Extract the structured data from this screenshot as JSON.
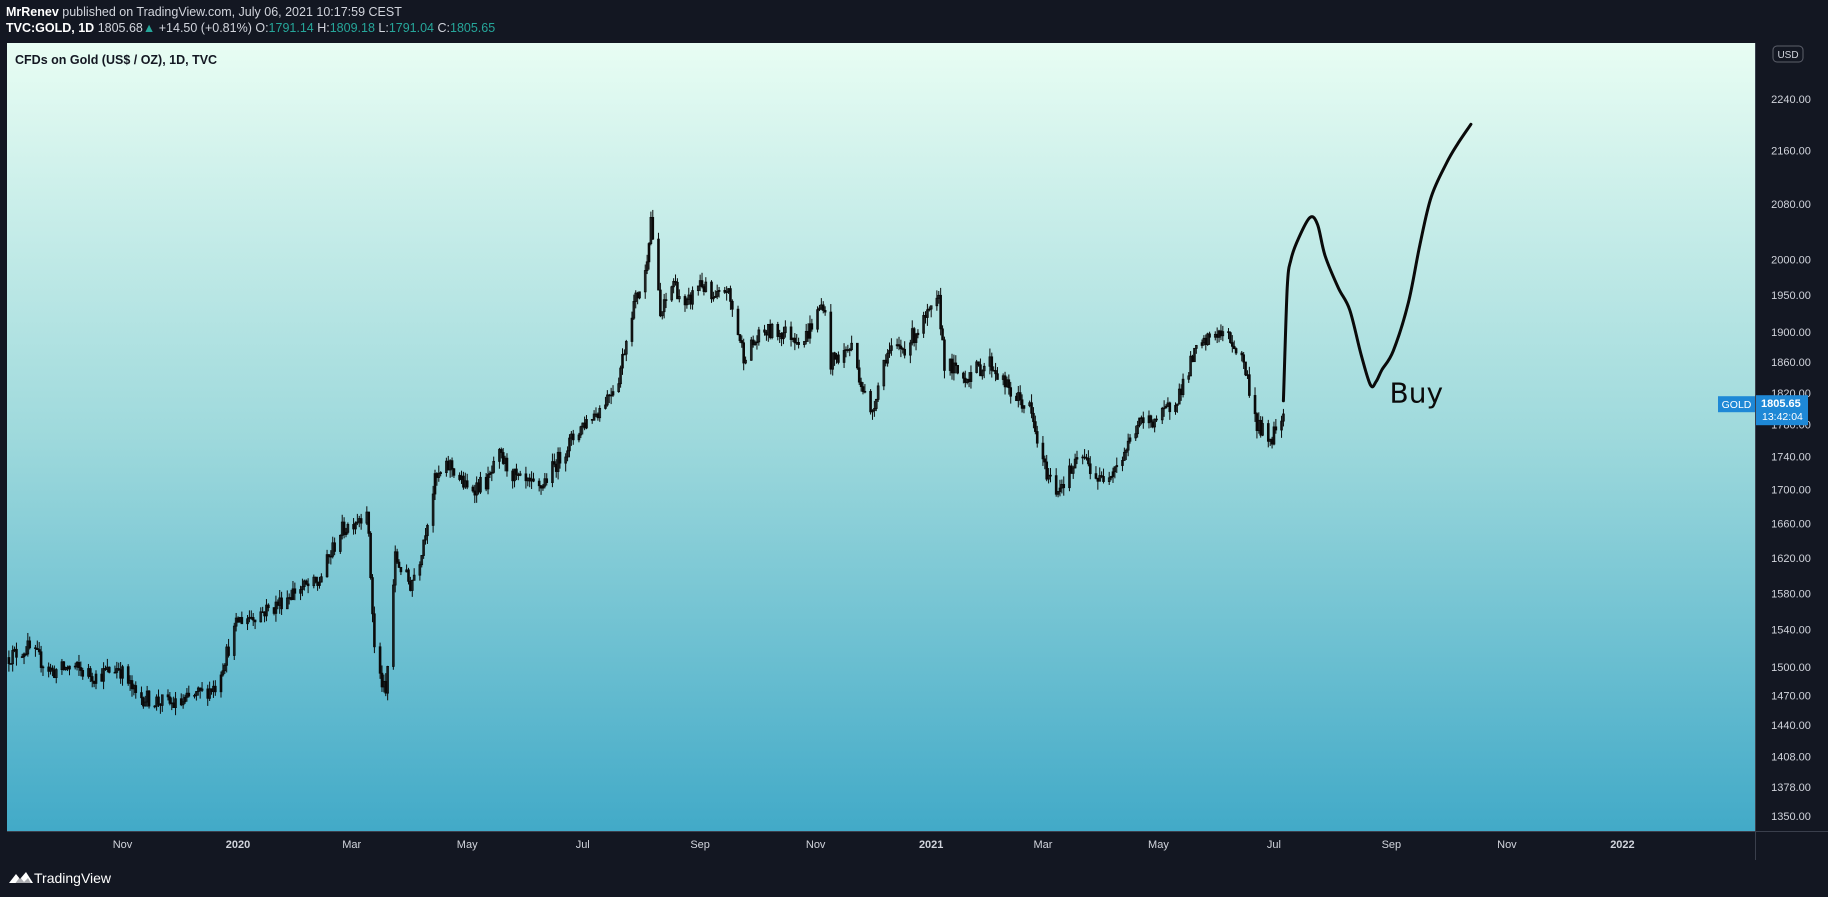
{
  "header": {
    "author": "MrRenev",
    "published_text": "published on TradingView.com, July 06, 2021 10:17:59 CEST",
    "symbol": "TVC:GOLD, 1D",
    "last": "1805.68",
    "change": "+14.50 (+0.81%)",
    "o_label": "O:",
    "o_value": "1791.14",
    "h_label": "H:",
    "h_value": "1809.18",
    "l_label": "L:",
    "l_value": "1791.04",
    "c_label": "C:",
    "c_value": "1805.65"
  },
  "footer": {
    "brand": "TradingView"
  },
  "colors": {
    "background": "#131722",
    "gradient_top": "#e8fdf3",
    "gradient_bottom": "#42aac8",
    "candle": "#0a0a0a",
    "accent": "#1e88d6",
    "up": "#26a69a"
  },
  "chart_data": {
    "type": "candlestick",
    "title": "CFDs on Gold (US$ / OZ), 1D, TVC",
    "currency": "USD",
    "y_scale": "log",
    "ylim": [
      1336,
      2330
    ],
    "xlim": [
      "2019-09-01",
      "2022-03-12"
    ],
    "y_ticks": [
      2240,
      2160,
      2080,
      2000,
      1950,
      1900,
      1860,
      1820,
      1780,
      1740,
      1700,
      1660,
      1620,
      1580,
      1540,
      1500,
      1470,
      1440,
      1408,
      1378,
      1350
    ],
    "y_tick_labels": [
      "2240.00",
      "2160.00",
      "2080.00",
      "2000.00",
      "1950.00",
      "1900.00",
      "1860.00",
      "1820.00",
      "1780.00",
      "1740.00",
      "1700.00",
      "1660.00",
      "1620.00",
      "1580.00",
      "1540.00",
      "1500.00",
      "1470.00",
      "1440.00",
      "1408.00",
      "1378.00",
      "1350.00"
    ],
    "x_ticks": [
      {
        "date": "2019-11-01",
        "label": "Nov",
        "bold": false
      },
      {
        "date": "2020-01-01",
        "label": "2020",
        "bold": true
      },
      {
        "date": "2020-03-01",
        "label": "Mar",
        "bold": false
      },
      {
        "date": "2020-05-01",
        "label": "May",
        "bold": false
      },
      {
        "date": "2020-07-01",
        "label": "Jul",
        "bold": false
      },
      {
        "date": "2020-09-01",
        "label": "Sep",
        "bold": false
      },
      {
        "date": "2020-11-01",
        "label": "Nov",
        "bold": false
      },
      {
        "date": "2021-01-01",
        "label": "2021",
        "bold": true
      },
      {
        "date": "2021-03-01",
        "label": "Mar",
        "bold": false
      },
      {
        "date": "2021-05-01",
        "label": "May",
        "bold": false
      },
      {
        "date": "2021-07-01",
        "label": "Jul",
        "bold": false
      },
      {
        "date": "2021-09-01",
        "label": "Sep",
        "bold": false
      },
      {
        "date": "2021-11-01",
        "label": "Nov",
        "bold": false
      },
      {
        "date": "2022-01-01",
        "label": "2022",
        "bold": true
      }
    ],
    "price_series": {
      "dates": [
        "2019-09-01",
        "2019-09-12",
        "2019-09-25",
        "2019-10-05",
        "2019-10-18",
        "2019-10-30",
        "2019-11-08",
        "2019-11-18",
        "2019-11-30",
        "2019-12-10",
        "2019-12-20",
        "2020-01-01",
        "2020-01-08",
        "2020-01-20",
        "2020-02-01",
        "2020-02-12",
        "2020-02-24",
        "2020-03-06",
        "2020-03-09",
        "2020-03-13",
        "2020-03-16",
        "2020-03-19",
        "2020-03-24",
        "2020-04-01",
        "2020-04-06",
        "2020-04-14",
        "2020-04-22",
        "2020-05-01",
        "2020-05-12",
        "2020-05-18",
        "2020-05-28",
        "2020-06-08",
        "2020-06-22",
        "2020-07-01",
        "2020-07-10",
        "2020-07-20",
        "2020-07-27",
        "2020-08-03",
        "2020-08-06",
        "2020-08-11",
        "2020-08-18",
        "2020-08-24",
        "2020-09-01",
        "2020-09-08",
        "2020-09-15",
        "2020-09-24",
        "2020-10-05",
        "2020-10-15",
        "2020-10-26",
        "2020-11-05",
        "2020-11-09",
        "2020-11-20",
        "2020-11-30",
        "2020-12-08",
        "2020-12-18",
        "2021-01-05",
        "2021-01-08",
        "2021-01-18",
        "2021-02-01",
        "2021-02-12",
        "2021-02-22",
        "2021-03-01",
        "2021-03-08",
        "2021-03-15",
        "2021-03-22",
        "2021-03-31",
        "2021-04-12",
        "2021-04-20",
        "2021-05-03",
        "2021-05-12",
        "2021-05-20",
        "2021-05-31",
        "2021-06-08",
        "2021-06-15",
        "2021-06-22",
        "2021-06-29",
        "2021-07-06"
      ],
      "values": [
        1510,
        1520,
        1495,
        1500,
        1490,
        1500,
        1470,
        1465,
        1460,
        1470,
        1480,
        1550,
        1555,
        1565,
        1585,
        1590,
        1650,
        1670,
        1680,
        1520,
        1490,
        1470,
        1620,
        1590,
        1620,
        1710,
        1730,
        1700,
        1710,
        1740,
        1710,
        1700,
        1750,
        1780,
        1800,
        1840,
        1930,
        1980,
        2060,
        1920,
        1970,
        1930,
        1970,
        1940,
        1960,
        1870,
        1900,
        1900,
        1890,
        1940,
        1860,
        1880,
        1790,
        1870,
        1880,
        1940,
        1860,
        1840,
        1860,
        1820,
        1800,
        1730,
        1700,
        1720,
        1740,
        1710,
        1740,
        1780,
        1790,
        1820,
        1870,
        1900,
        1890,
        1860,
        1780,
        1760,
        1800
      ]
    },
    "projection": {
      "dates": [
        "2021-07-06",
        "2021-07-08",
        "2021-07-10",
        "2021-07-14",
        "2021-07-20",
        "2021-07-24",
        "2021-07-28",
        "2021-08-04",
        "2021-08-10",
        "2021-08-16",
        "2021-08-21",
        "2021-08-24",
        "2021-08-27",
        "2021-09-02",
        "2021-09-10",
        "2021-09-16",
        "2021-09-22",
        "2021-09-30",
        "2021-10-06",
        "2021-10-13"
      ],
      "values": [
        1810,
        1960,
        2000,
        2030,
        2060,
        2050,
        2005,
        1960,
        1930,
        1870,
        1830,
        1835,
        1850,
        1875,
        1940,
        2020,
        2090,
        2140,
        2170,
        2200
      ]
    },
    "annotation": {
      "text": "Buy",
      "date": "2021-08-31",
      "value": 1808
    },
    "last_price_label": {
      "symbol": "GOLD",
      "price": "1805.65",
      "countdown": "13:42:04",
      "value": 1805.65
    }
  }
}
